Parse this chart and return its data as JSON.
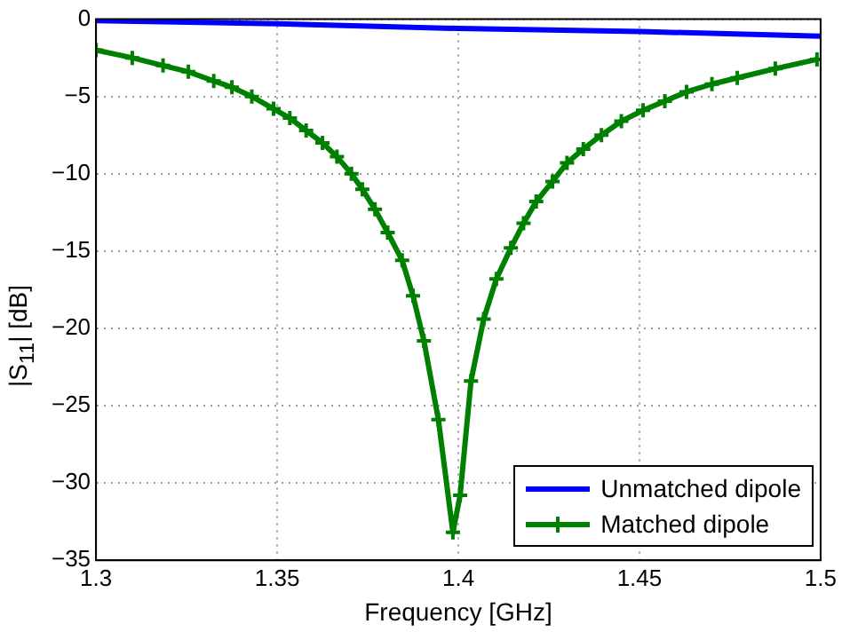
{
  "chart_data": {
    "type": "line",
    "xlabel": "Frequency [GHz]",
    "ylabel": "|S$_{11}$| [dB]",
    "xlim": [
      1.3,
      1.5
    ],
    "xticks": [
      1.3,
      1.35,
      1.4,
      1.45,
      1.5
    ],
    "ylim": [
      -35,
      0
    ],
    "yticks": [
      -35,
      -30,
      -25,
      -20,
      -15,
      -10,
      -5,
      0
    ],
    "grid": true,
    "legend": "bottom right",
    "line_style": "solid",
    "series": [
      {
        "name": "Unmatched dipole",
        "color": "#0000ff",
        "marker": "none",
        "x": [
          1.3,
          1.35,
          1.4,
          1.45,
          1.5
        ],
        "values": [
          -0.1,
          -0.3,
          -0.6,
          -0.8,
          -1.1
        ]
      },
      {
        "name": "Matched dipole",
        "color": "#008000",
        "marker": "cross",
        "x": [
          1.3,
          1.31,
          1.3185,
          1.3255,
          1.3325,
          1.3375,
          1.343,
          1.349,
          1.3535,
          1.358,
          1.3625,
          1.3665,
          1.3705,
          1.3735,
          1.377,
          1.3805,
          1.3845,
          1.3875,
          1.3905,
          1.3945,
          1.3985,
          1.4005,
          1.4035,
          1.407,
          1.4105,
          1.4145,
          1.418,
          1.4215,
          1.426,
          1.43,
          1.4345,
          1.4395,
          1.445,
          1.451,
          1.457,
          1.463,
          1.47,
          1.477,
          1.4875,
          1.499
        ],
        "values": [
          -2.0,
          -2.5,
          -3.0,
          -3.4,
          -4.0,
          -4.4,
          -5.0,
          -5.8,
          -6.4,
          -7.2,
          -8.0,
          -8.9,
          -10.0,
          -11.0,
          -12.3,
          -13.8,
          -15.6,
          -17.9,
          -20.8,
          -25.9,
          -33.2,
          -30.8,
          -23.4,
          -19.4,
          -16.8,
          -14.8,
          -13.2,
          -11.8,
          -10.5,
          -9.3,
          -8.4,
          -7.5,
          -6.6,
          -5.9,
          -5.3,
          -4.7,
          -4.2,
          -3.8,
          -3.2,
          -2.6
        ]
      }
    ]
  }
}
